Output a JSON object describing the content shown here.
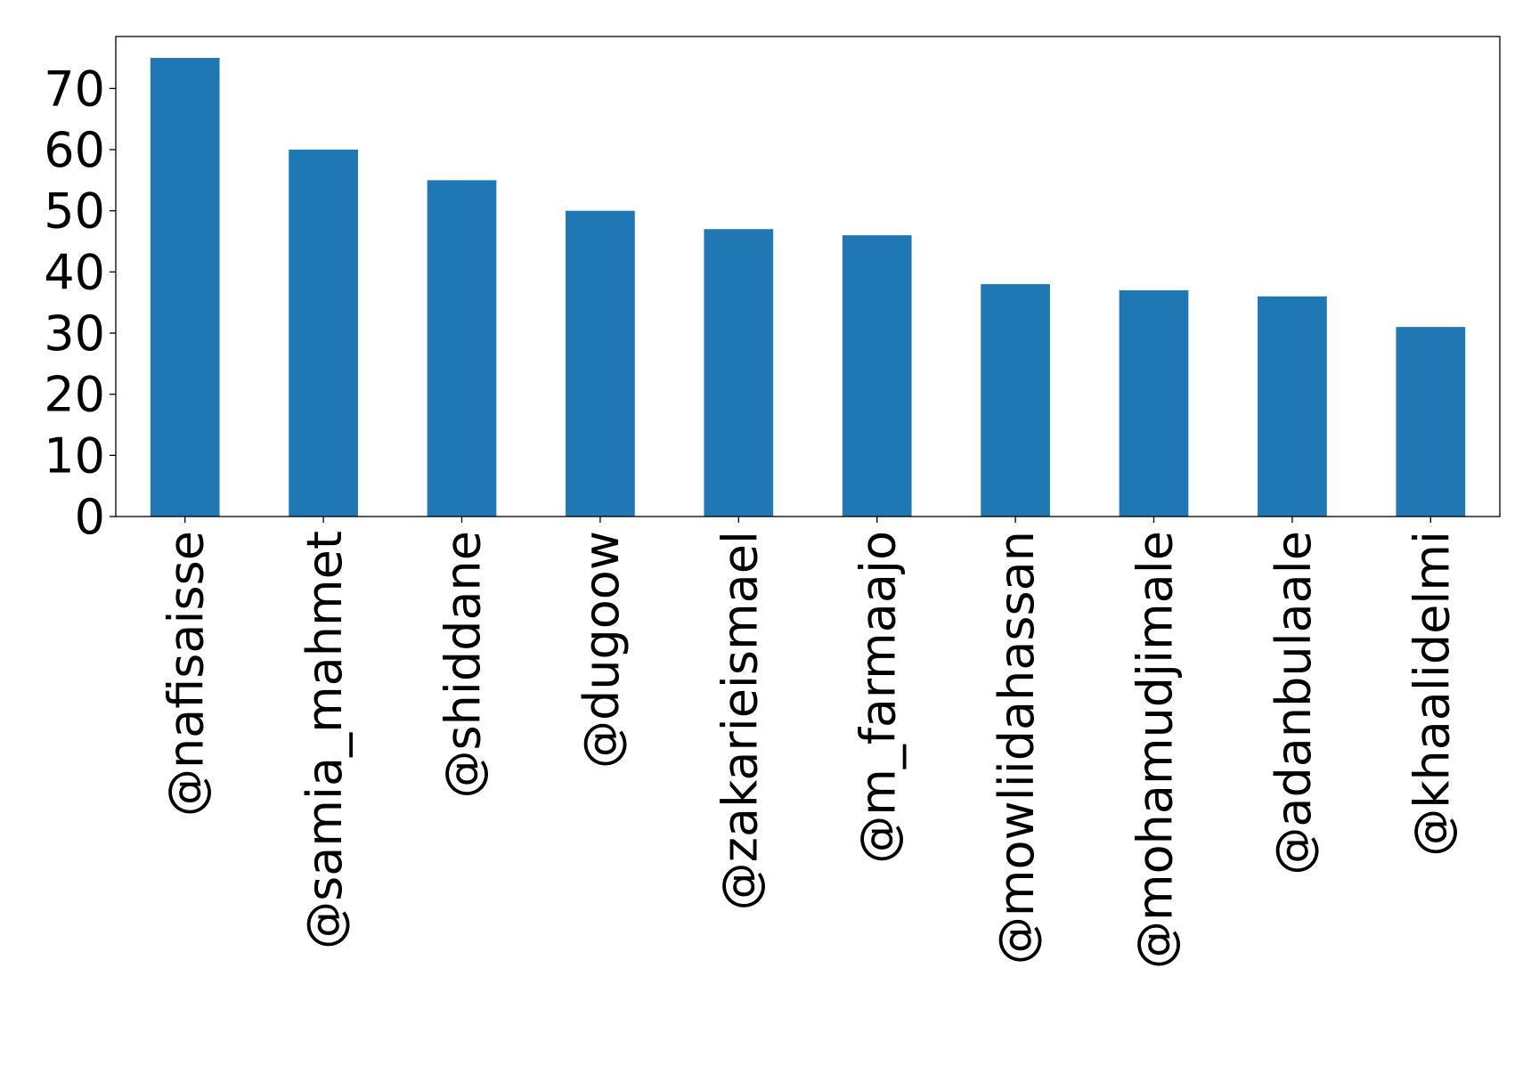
{
  "chart_data": {
    "type": "bar",
    "title": "",
    "xlabel": "",
    "ylabel": "",
    "categories": [
      "@nafisaisse",
      "@samia_mahmet",
      "@shiddane",
      "@dugoow",
      "@zakarieismael",
      "@m_farmaajo",
      "@mowliidahassan",
      "@mohamudjimale",
      "@adanbulaale",
      "@khaalidelmi"
    ],
    "values": [
      75,
      60,
      55,
      50,
      47,
      46,
      38,
      37,
      36,
      31
    ],
    "yticks": [
      0,
      10,
      20,
      30,
      40,
      50,
      60,
      70
    ],
    "ylim": [
      0,
      78.5
    ],
    "grid": false,
    "legend": "none",
    "bar_color": "#1f77b4",
    "x_tick_rotation": "vertical"
  }
}
